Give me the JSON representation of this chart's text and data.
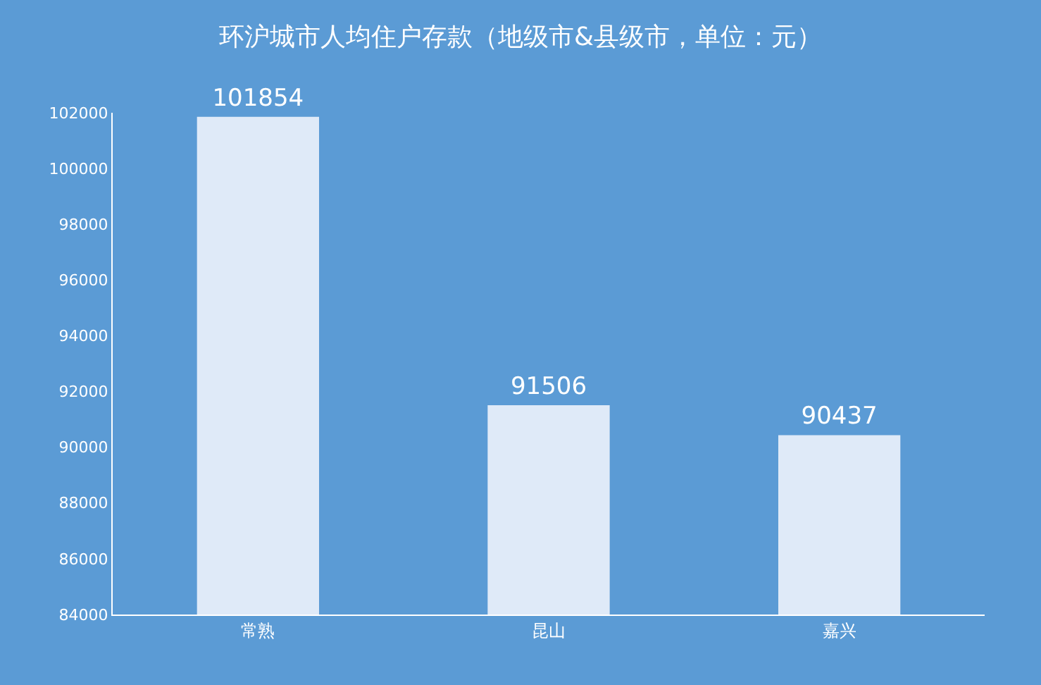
{
  "chart_data": {
    "type": "bar",
    "title": "环沪城市人均住户存款（地级市&县级市，单位：元）",
    "categories": [
      "常熟",
      "昆山",
      "嘉兴"
    ],
    "values": [
      101854,
      91506,
      90437
    ],
    "color": "#dfeaf8",
    "ylim": [
      84000,
      102000
    ],
    "yticks": [
      84000,
      86000,
      88000,
      90000,
      92000,
      94000,
      96000,
      98000,
      100000,
      102000
    ],
    "data_labels": true,
    "grid": false,
    "legend": false
  }
}
